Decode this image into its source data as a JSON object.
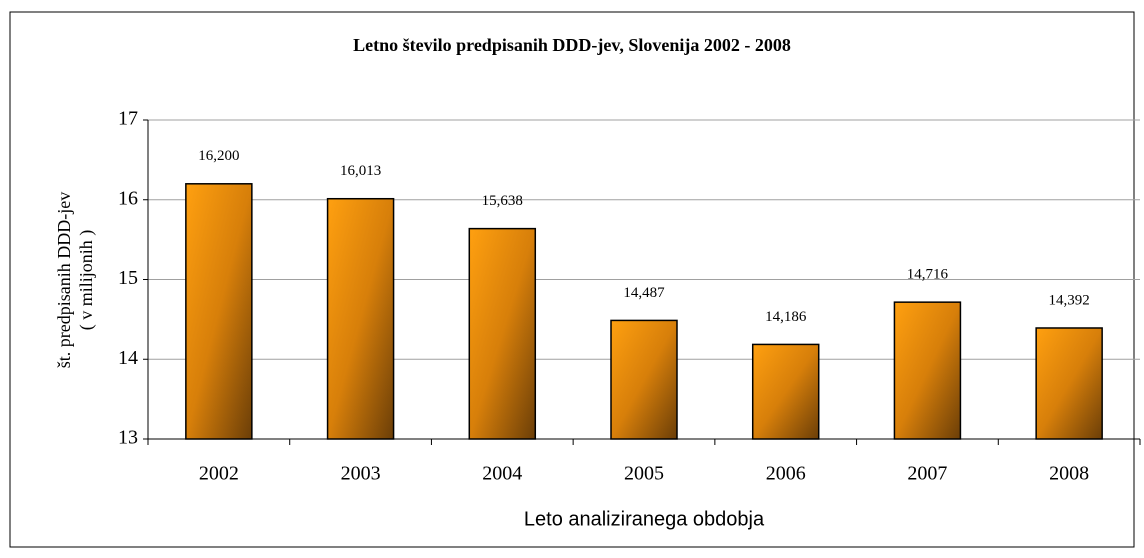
{
  "chart_data": {
    "type": "bar",
    "title": "Letno število predpisanih DDD-jev, Slovenija 2002 - 2008",
    "x_label": "Leto analiziranega obdobja",
    "y_label": [
      "št. predpisanih DDD-jev",
      "( v  milijonih )"
    ],
    "categories": [
      "2002",
      "2003",
      "2004",
      "2005",
      "2006",
      "2007",
      "2008"
    ],
    "values": [
      16.2,
      16.013,
      15.638,
      14.487,
      14.186,
      14.716,
      14.392
    ],
    "value_labels": [
      "16,200",
      "16,013",
      "15,638",
      "14,487",
      "14,186",
      "14,716",
      "14,392"
    ],
    "color": "#ff9900",
    "ylim": [
      13,
      17
    ],
    "yticks": [
      13,
      14,
      15,
      16,
      17
    ],
    "grid": true
  }
}
